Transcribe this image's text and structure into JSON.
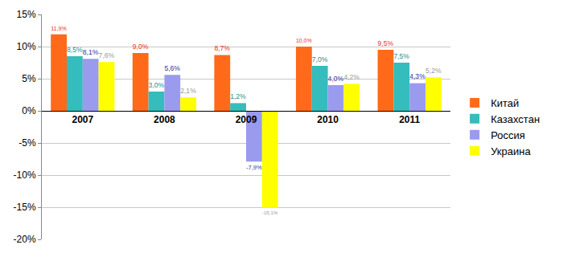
{
  "chart_data": {
    "type": "bar",
    "categories": [
      "2007",
      "2008",
      "2009",
      "2010",
      "2011"
    ],
    "series": [
      {
        "name": "Китай",
        "color": "#ff6a1a",
        "values": [
          11.9,
          9.0,
          8.7,
          10.0,
          9.5
        ],
        "value_labels": [
          "11,9%",
          "9,0%",
          "8,7%",
          "10,0%",
          "9,5%"
        ]
      },
      {
        "name": "Казахстан",
        "color": "#35bcbc",
        "values": [
          8.5,
          3.0,
          1.2,
          7.0,
          7.5
        ],
        "value_labels": [
          "8,5%",
          "3,0%",
          "1,2%",
          "7,0%",
          "7,5%"
        ]
      },
      {
        "name": "Россия",
        "color": "#9a9aee",
        "values": [
          8.1,
          5.6,
          -7.9,
          4.0,
          4.3
        ],
        "value_labels": [
          "8,1%",
          "5,6%",
          "-7,9%",
          "4,0%",
          "4,3%"
        ]
      },
      {
        "name": "Украина",
        "color": "#ffff00",
        "values": [
          7.6,
          2.1,
          -15.1,
          4.2,
          5.2
        ],
        "value_labels": [
          "7,6%",
          "2,1%",
          "-15,1%",
          "4,2%",
          "5,2%"
        ]
      }
    ],
    "ylim": [
      -20,
      15
    ],
    "yticks": [
      {
        "value": -20,
        "label": "-20%"
      },
      {
        "value": -15,
        "label": "-15%"
      },
      {
        "value": -10,
        "label": "-10%"
      },
      {
        "value": -5,
        "label": "-5%"
      },
      {
        "value": 0,
        "label": "0%"
      },
      {
        "value": 5,
        "label": "5%"
      },
      {
        "value": 10,
        "label": "10%"
      },
      {
        "value": 15,
        "label": "15%"
      }
    ],
    "grid": true,
    "legend": "right",
    "data_labels": true
  }
}
